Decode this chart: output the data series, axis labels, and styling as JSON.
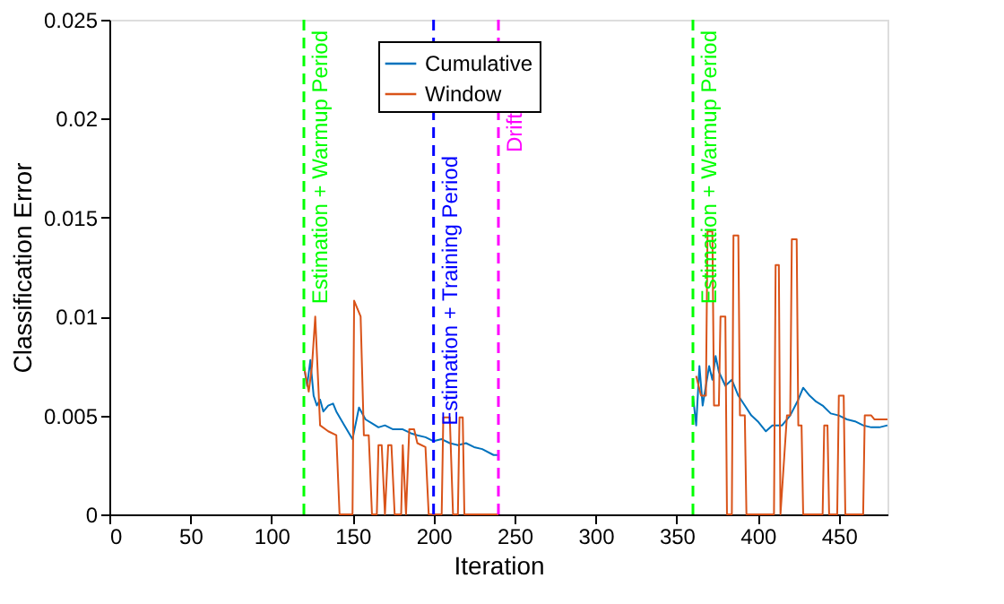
{
  "chart_data": {
    "type": "line",
    "xlabel": "Iteration",
    "ylabel": "Classification Error",
    "xlim": [
      0,
      480
    ],
    "ylim": [
      0,
      0.025
    ],
    "xticks": [
      0,
      50,
      100,
      150,
      200,
      250,
      300,
      350,
      400,
      450
    ],
    "yticks": [
      0,
      0.005,
      0.01,
      0.015,
      0.02,
      0.025
    ],
    "grid": false,
    "legend": "top",
    "line_style": "solid",
    "marker": "none",
    "series": [
      {
        "name": "Cumulative",
        "color": "#0072bd",
        "x": [
          120,
          122,
          124,
          126,
          128,
          130,
          132,
          135,
          138,
          140,
          145,
          150,
          154,
          158,
          162,
          166,
          170,
          175,
          181,
          186,
          190,
          195,
          200,
          205,
          210,
          215,
          220,
          225,
          230,
          237,
          240,
          300,
          360,
          362,
          364,
          366,
          368,
          370,
          372,
          374,
          376,
          380,
          384,
          388,
          392,
          396,
          400,
          405,
          409,
          415,
          420,
          425,
          428,
          432,
          436,
          440,
          445,
          450,
          455,
          460,
          465,
          470,
          475,
          480
        ],
        "values": [
          0.0075,
          0.0065,
          0.0078,
          0.006,
          0.0055,
          0.0058,
          0.0052,
          0.0055,
          0.0056,
          0.0052,
          0.0045,
          0.0038,
          0.0054,
          0.0048,
          0.0046,
          0.0044,
          0.0045,
          0.0043,
          0.0043,
          0.0041,
          0.004,
          0.0039,
          0.0037,
          0.0038,
          0.0036,
          0.0035,
          0.0036,
          0.0034,
          0.0033,
          0.003,
          0.003,
          null,
          0.006,
          0.0045,
          0.0075,
          0.0055,
          0.0065,
          0.0075,
          0.0068,
          0.008,
          0.0072,
          0.0065,
          0.0068,
          0.006,
          0.0055,
          0.005,
          0.0047,
          0.0042,
          0.0045,
          0.0045,
          0.005,
          0.0058,
          0.0064,
          0.006,
          0.0057,
          0.0055,
          0.0051,
          0.005,
          0.0048,
          0.0047,
          0.0045,
          0.0044,
          0.0044,
          0.0045
        ]
      },
      {
        "name": "Window",
        "color": "#d95319",
        "x": [
          120,
          123,
          125,
          127,
          130,
          135,
          140,
          142,
          150,
          151,
          155,
          157,
          160,
          162,
          165,
          166,
          168,
          170,
          172,
          174,
          176,
          180,
          181,
          183,
          185,
          188,
          190,
          195,
          197,
          205,
          206,
          210,
          212,
          215,
          216,
          218,
          219,
          240,
          300,
          360,
          362,
          365,
          368,
          369,
          372,
          373,
          376,
          377,
          380,
          381,
          384,
          385,
          388,
          389,
          392,
          393,
          410,
          411,
          413,
          414,
          418,
          420,
          421,
          424,
          425,
          427,
          428,
          440,
          441,
          443,
          444,
          449,
          450,
          453,
          454,
          465,
          466,
          470,
          472,
          480
        ],
        "values": [
          0.0075,
          0.0062,
          0.0075,
          0.01,
          0.0045,
          0.0042,
          0.004,
          0,
          0,
          0.0108,
          0.01,
          0.004,
          0.004,
          0,
          0,
          0.0035,
          0.0035,
          0,
          0.0035,
          0.0035,
          0,
          0,
          0.0035,
          0,
          0.0043,
          0.0043,
          0.0036,
          0.0034,
          0,
          0,
          0.0049,
          0.0049,
          0,
          0,
          0.0049,
          0.0049,
          0,
          0,
          null,
          null,
          0.007,
          0.006,
          0.006,
          0.0143,
          0.0143,
          0.0055,
          0.0055,
          0.01,
          0.01,
          0,
          0,
          0.0141,
          0.0141,
          0.005,
          0.005,
          0,
          0,
          0.0126,
          0.0126,
          0,
          0.005,
          0.005,
          0.0139,
          0.0139,
          0.0045,
          0.0045,
          0,
          0,
          0.0045,
          0.0045,
          0,
          0,
          0.006,
          0.006,
          0,
          0,
          0.005,
          0.005,
          0.0048,
          0.0048
        ]
      }
    ],
    "ref_lines": [
      {
        "axis": "x",
        "value": 120,
        "label": "Estimation + Warmup Period",
        "color": "#00ff00",
        "line_style": "dashed"
      },
      {
        "axis": "x",
        "value": 200,
        "label": "Estimation + Training Period",
        "color": "#0000ff",
        "line_style": "dashed"
      },
      {
        "axis": "x",
        "value": 240,
        "label": "Drift",
        "color": "#ff00ff",
        "line_style": "dashed"
      },
      {
        "axis": "x",
        "value": 360,
        "label": "Estimation + Warmup Period",
        "color": "#00ff00",
        "line_style": "dashed"
      }
    ]
  }
}
